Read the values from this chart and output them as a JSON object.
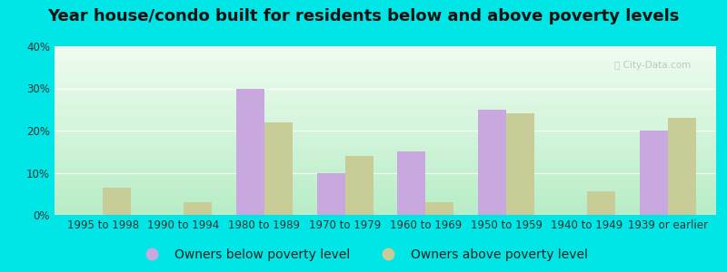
{
  "title": "Year house/condo built for residents below and above poverty levels",
  "categories": [
    "1995 to 1998",
    "1990 to 1994",
    "1980 to 1989",
    "1970 to 1979",
    "1960 to 1969",
    "1950 to 1959",
    "1940 to 1949",
    "1939 or earlier"
  ],
  "below_poverty": [
    0,
    0,
    30,
    10,
    15,
    25,
    0,
    20
  ],
  "above_poverty": [
    6.5,
    3,
    22,
    14,
    3,
    24,
    5.5,
    23
  ],
  "below_color": "#c9a8e0",
  "above_color": "#c8cc96",
  "ylim": [
    0,
    40
  ],
  "yticks": [
    0,
    10,
    20,
    30,
    40
  ],
  "background_top": "#f0faf0",
  "background_bottom": "#b8eec8",
  "outer_background": "#00e5e5",
  "legend_below_label": "Owners below poverty level",
  "legend_above_label": "Owners above poverty level",
  "bar_width": 0.35,
  "title_fontsize": 13,
  "tick_fontsize": 8.5,
  "legend_fontsize": 10
}
